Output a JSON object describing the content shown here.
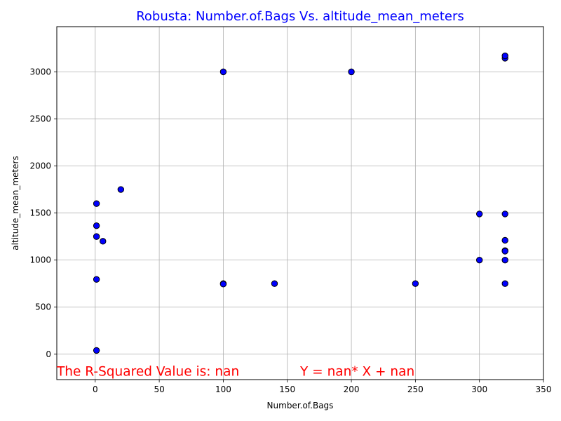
{
  "chart_data": {
    "type": "scatter",
    "title": "Robusta: Number.of.Bags Vs. altitude_mean_meters",
    "xlabel": "Number.of.Bags",
    "ylabel": "altitude_mean_meters",
    "xlim": [
      -30,
      350
    ],
    "ylim": [
      -270,
      3480
    ],
    "xticks": [
      0,
      50,
      100,
      150,
      200,
      250,
      300,
      350
    ],
    "yticks": [
      0,
      500,
      1000,
      1500,
      2000,
      2500,
      3000
    ],
    "grid": true,
    "colors": {
      "title": "#0000ff",
      "marker_fill": "#0000ff",
      "marker_edge": "#000000",
      "annotation": "#ff0000",
      "grid": "#b0b0b0"
    },
    "points": [
      {
        "x": 1,
        "y": 40
      },
      {
        "x": 1,
        "y": 795
      },
      {
        "x": 1,
        "y": 1250
      },
      {
        "x": 1,
        "y": 1365
      },
      {
        "x": 1,
        "y": 1600
      },
      {
        "x": 6,
        "y": 1200
      },
      {
        "x": 20,
        "y": 1750
      },
      {
        "x": 100,
        "y": 750
      },
      {
        "x": 100,
        "y": 745
      },
      {
        "x": 100,
        "y": 3000
      },
      {
        "x": 140,
        "y": 750
      },
      {
        "x": 200,
        "y": 3000
      },
      {
        "x": 250,
        "y": 750
      },
      {
        "x": 300,
        "y": 1000
      },
      {
        "x": 300,
        "y": 1490
      },
      {
        "x": 320,
        "y": 750
      },
      {
        "x": 320,
        "y": 1000
      },
      {
        "x": 320,
        "y": 1100
      },
      {
        "x": 320,
        "y": 1095
      },
      {
        "x": 320,
        "y": 1210
      },
      {
        "x": 320,
        "y": 1490
      },
      {
        "x": 320,
        "y": 3145
      },
      {
        "x": 320,
        "y": 3170
      }
    ],
    "annotations": {
      "r_squared": "The R-Squared Value is: nan",
      "equation": "Y = nan* X + nan"
    }
  }
}
